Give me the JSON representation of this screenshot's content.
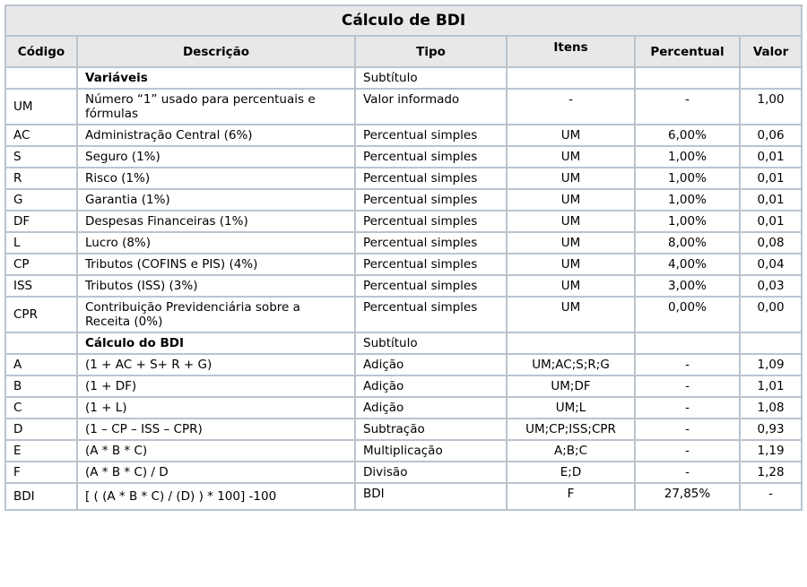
{
  "title": "Cálculo de BDI",
  "colors": {
    "border": "#b9c4d0",
    "header_bg": "#e8e8e8",
    "row_bg": "#ffffff",
    "text": "#000000"
  },
  "table": {
    "columns": [
      "Código",
      "Descrição",
      "Tipo",
      "Itens",
      "Percentual",
      "Valor"
    ],
    "rows": [
      {
        "codigo": "",
        "descricao": "Variáveis",
        "tipo": "Subtítulo",
        "itens": "",
        "percentual": "",
        "valor": "",
        "subtitle": true
      },
      {
        "codigo": "UM",
        "descricao": "Número “1” usado para percentuais e fórmulas",
        "tipo": "Valor informado",
        "itens": "-",
        "percentual": "-",
        "valor": "1,00"
      },
      {
        "codigo": "AC",
        "descricao": "Administração Central (6%)",
        "tipo": "Percentual simples",
        "itens": "UM",
        "percentual": "6,00%",
        "valor": "0,06"
      },
      {
        "codigo": "S",
        "descricao": "Seguro (1%)",
        "tipo": "Percentual simples",
        "itens": "UM",
        "percentual": "1,00%",
        "valor": "0,01"
      },
      {
        "codigo": "R",
        "descricao": "Risco (1%)",
        "tipo": "Percentual simples",
        "itens": "UM",
        "percentual": "1,00%",
        "valor": "0,01"
      },
      {
        "codigo": "G",
        "descricao": "Garantia (1%)",
        "tipo": "Percentual simples",
        "itens": "UM",
        "percentual": "1,00%",
        "valor": "0,01"
      },
      {
        "codigo": "DF",
        "descricao": "Despesas Financeiras (1%)",
        "tipo": "Percentual simples",
        "itens": "UM",
        "percentual": "1,00%",
        "valor": "0,01"
      },
      {
        "codigo": "L",
        "descricao": "Lucro (8%)",
        "tipo": "Percentual simples",
        "itens": "UM",
        "percentual": "8,00%",
        "valor": "0,08"
      },
      {
        "codigo": "CP",
        "descricao": "Tributos (COFINS e PIS) (4%)",
        "tipo": "Percentual simples",
        "itens": "UM",
        "percentual": "4,00%",
        "valor": "0,04"
      },
      {
        "codigo": "ISS",
        "descricao": "Tributos (ISS) (3%)",
        "tipo": "Percentual simples",
        "itens": "UM",
        "percentual": "3,00%",
        "valor": "0,03"
      },
      {
        "codigo": "CPR",
        "descricao": "Contribuição Previdenciária sobre a Receita (0%)",
        "tipo": "Percentual simples",
        "itens": "UM",
        "percentual": "0,00%",
        "valor": "0,00"
      },
      {
        "codigo": "",
        "descricao": "Cálculo do BDI",
        "tipo": "Subtítulo",
        "itens": "",
        "percentual": "",
        "valor": "",
        "subtitle": true
      },
      {
        "codigo": "A",
        "descricao": "(1 + AC + S+ R + G)",
        "tipo": "Adição",
        "itens": "UM;AC;S;R;G",
        "percentual": "-",
        "valor": "1,09"
      },
      {
        "codigo": "B",
        "descricao": "(1 + DF)",
        "tipo": "Adição",
        "itens": "UM;DF",
        "percentual": "-",
        "valor": "1,01"
      },
      {
        "codigo": "C",
        "descricao": "(1 + L)",
        "tipo": "Adição",
        "itens": "UM;L",
        "percentual": "-",
        "valor": "1,08"
      },
      {
        "codigo": "D",
        "descricao": "(1 – CP – ISS – CPR)",
        "tipo": "Subtração",
        "itens": "UM;CP;ISS;CPR",
        "percentual": "-",
        "valor": "0,93"
      },
      {
        "codigo": "E",
        "descricao": "(A * B * C)",
        "tipo": "Multiplicação",
        "itens": "A;B;C",
        "percentual": "-",
        "valor": "1,19"
      },
      {
        "codigo": "F",
        "descricao": "(A * B * C) / D",
        "tipo": "Divisão",
        "itens": "E;D",
        "percentual": "-",
        "valor": "1,28"
      },
      {
        "codigo": "BDI",
        "descricao": "[ ( (A * B * C) / (D) ) * 100] -100",
        "tipo": "BDI",
        "itens": "F",
        "percentual": "27,85%",
        "valor": "-",
        "tall": true
      }
    ]
  }
}
